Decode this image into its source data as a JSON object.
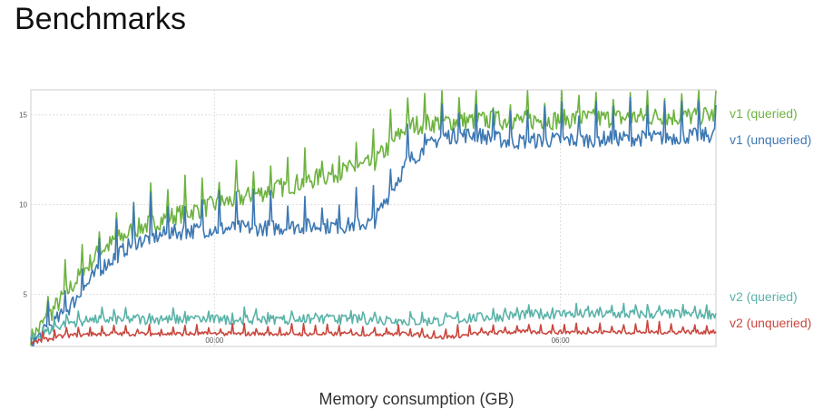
{
  "page": {
    "title": "Benchmarks",
    "caption": "Memory consumption (GB)"
  },
  "chart_data": {
    "type": "line",
    "title": "",
    "xlabel": "",
    "ylabel": "",
    "x_ticks": [
      "00:00",
      "06:00"
    ],
    "y_ticks": [
      5,
      10,
      15
    ],
    "ylim": [
      2.1,
      16.4
    ],
    "grid": true,
    "legend": "right",
    "x": [
      0,
      0.05,
      0.1,
      0.15,
      0.2,
      0.25,
      0.3,
      0.35,
      0.4,
      0.45,
      0.5,
      0.55,
      0.6,
      0.65,
      0.7,
      0.75,
      0.8,
      0.85,
      0.9,
      0.95,
      1
    ],
    "series": [
      {
        "name": "v1 (queried)",
        "color": "#6db33f",
        "values": [
          2.5,
          5.0,
          7.4,
          8.6,
          9.3,
          9.8,
          10.3,
          10.8,
          11.3,
          11.8,
          12.3,
          14.4,
          14.6,
          14.7,
          14.7,
          14.7,
          14.8,
          14.8,
          14.9,
          14.9,
          15.0
        ]
      },
      {
        "name": "v1 (unqueried)",
        "color": "#3d78b3",
        "values": [
          2.2,
          4.0,
          6.4,
          7.9,
          8.4,
          8.6,
          8.7,
          8.7,
          8.8,
          8.8,
          9.0,
          12.4,
          13.8,
          13.9,
          13.5,
          13.6,
          13.6,
          13.7,
          13.7,
          13.8,
          13.9
        ]
      },
      {
        "name": "v2 (queried)",
        "color": "#5ab3a8",
        "values": [
          2.5,
          3.4,
          3.6,
          3.6,
          3.6,
          3.6,
          3.6,
          3.6,
          3.6,
          3.6,
          3.6,
          3.5,
          3.5,
          3.7,
          3.8,
          3.9,
          3.9,
          3.9,
          3.9,
          3.9,
          3.9
        ]
      },
      {
        "name": "v2 (unqueried)",
        "color": "#c9463d",
        "values": [
          2.3,
          2.7,
          2.8,
          2.8,
          2.8,
          2.8,
          2.8,
          2.8,
          2.8,
          2.8,
          2.8,
          2.8,
          2.6,
          2.8,
          2.9,
          2.9,
          2.9,
          2.9,
          2.9,
          2.9,
          2.9
        ]
      }
    ]
  }
}
